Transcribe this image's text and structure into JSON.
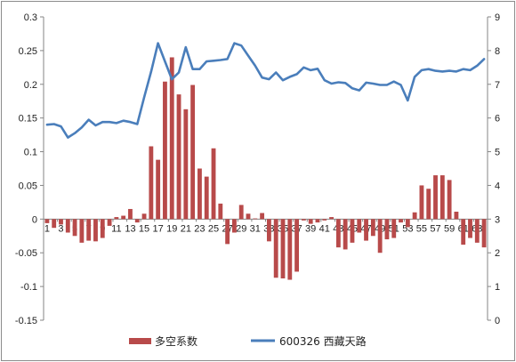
{
  "chart_data": {
    "type": "bar",
    "x": [
      1,
      2,
      3,
      4,
      5,
      6,
      7,
      8,
      9,
      10,
      11,
      12,
      13,
      14,
      15,
      16,
      17,
      18,
      19,
      20,
      21,
      22,
      23,
      24,
      25,
      26,
      27,
      28,
      29,
      30,
      31,
      32,
      33,
      34,
      35,
      36,
      37,
      38,
      39,
      40,
      41,
      42,
      43,
      44,
      45,
      46,
      47,
      48,
      49,
      50,
      51,
      52,
      53,
      54,
      55,
      56,
      57,
      58,
      59,
      60,
      61,
      62,
      63,
      64
    ],
    "x_tick_labels": [
      "1",
      "3",
      "5",
      "7",
      "9",
      "11",
      "13",
      "15",
      "17",
      "19",
      "21",
      "23",
      "25",
      "27",
      "29",
      "31",
      "33",
      "35",
      "37",
      "39",
      "41",
      "43",
      "45",
      "47",
      "49",
      "51",
      "53",
      "55",
      "57",
      "59",
      "61",
      "63"
    ],
    "y_left_ticks": [
      "-0.15",
      "-0.1",
      "-0.05",
      "0",
      "0.05",
      "0.1",
      "0.15",
      "0.2",
      "0.25",
      "0.3"
    ],
    "y_right_ticks": [
      "0",
      "1",
      "2",
      "3",
      "4",
      "5",
      "6",
      "7",
      "8",
      "9"
    ],
    "y_left_range": [
      -0.15,
      0.3
    ],
    "y_right_range": [
      0,
      9
    ],
    "grid": false,
    "legend_position": "bottom",
    "series": [
      {
        "name": "多空系数",
        "type": "bar",
        "axis": "left",
        "color": "#b84a4a",
        "values": [
          -0.006,
          -0.013,
          -0.008,
          -0.02,
          -0.025,
          -0.035,
          -0.032,
          -0.033,
          -0.028,
          -0.01,
          0.003,
          0.005,
          0.015,
          -0.005,
          0.008,
          0.108,
          0.088,
          0.204,
          0.24,
          0.185,
          0.163,
          0.199,
          0.075,
          0.063,
          0.105,
          0.023,
          -0.037,
          -0.02,
          0.021,
          0.008,
          0.001,
          0.009,
          -0.033,
          -0.087,
          -0.088,
          -0.09,
          -0.078,
          -0.002,
          -0.007,
          -0.005,
          -0.002,
          0.003,
          -0.042,
          -0.045,
          -0.035,
          -0.02,
          -0.032,
          -0.025,
          -0.05,
          -0.03,
          -0.028,
          -0.005,
          -0.012,
          0.01,
          0.05,
          0.045,
          0.065,
          0.065,
          0.058,
          0.011,
          -0.038,
          -0.028,
          -0.035,
          -0.042
        ]
      },
      {
        "name": "600326 西藏天路",
        "type": "line",
        "axis": "right",
        "color": "#4a7ebb",
        "values": [
          5.8,
          5.82,
          5.75,
          5.42,
          5.55,
          5.72,
          5.95,
          5.78,
          5.88,
          5.88,
          5.85,
          5.92,
          5.88,
          5.82,
          6.62,
          7.38,
          8.22,
          7.68,
          7.15,
          7.35,
          8.1,
          7.45,
          7.45,
          7.68,
          7.7,
          7.72,
          7.75,
          8.22,
          8.15,
          7.85,
          7.55,
          7.2,
          7.15,
          7.35,
          7.12,
          7.22,
          7.3,
          7.5,
          7.42,
          7.46,
          7.12,
          7.02,
          7.06,
          7.04,
          6.88,
          6.82,
          7.05,
          7.02,
          6.98,
          6.98,
          7.08,
          6.98,
          6.52,
          7.22,
          7.42,
          7.45,
          7.4,
          7.38,
          7.4,
          7.38,
          7.45,
          7.42,
          7.55,
          7.75
        ]
      }
    ]
  }
}
